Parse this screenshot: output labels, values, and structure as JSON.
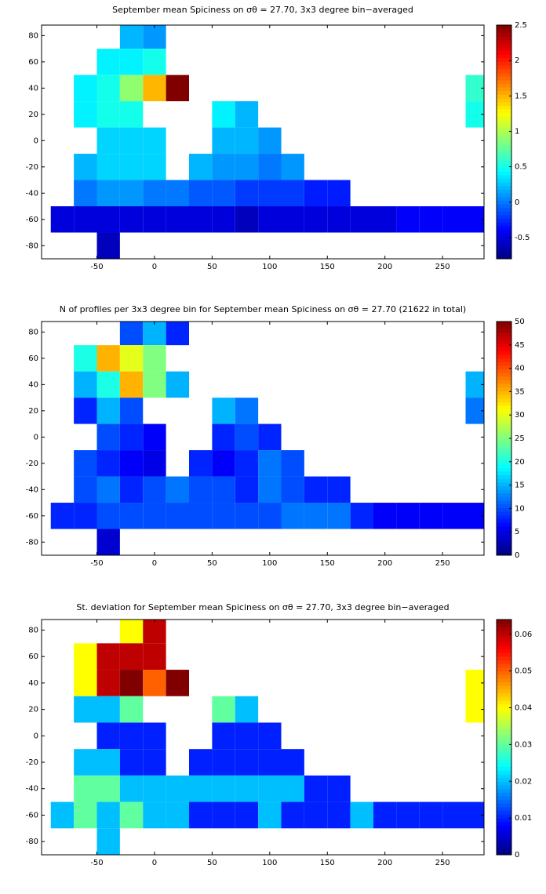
{
  "chart_data": [
    {
      "type": "heatmap",
      "title": "September mean Spiciness on σθ = 27.70, 3x3 degree bin−averaged",
      "colormap": "jet",
      "x_bins": [
        -90,
        -70,
        -50,
        -30,
        -10,
        10,
        30,
        50,
        70,
        90,
        110,
        130,
        150,
        170,
        190,
        210,
        230,
        250,
        270,
        290
      ],
      "y_bins": [
        90,
        70,
        50,
        30,
        10,
        -10,
        -30,
        -50,
        -70,
        -90
      ],
      "values": [
        [
          null,
          null,
          null,
          0.2,
          0.1,
          null,
          null,
          null,
          null,
          null,
          null,
          null,
          null,
          null,
          null,
          null,
          null,
          null,
          null
        ],
        [
          null,
          null,
          0.4,
          0.4,
          0.5,
          null,
          null,
          null,
          null,
          null,
          null,
          null,
          null,
          null,
          null,
          null,
          null,
          null,
          null
        ],
        [
          null,
          0.4,
          0.5,
          0.9,
          1.5,
          2.5,
          null,
          null,
          null,
          null,
          null,
          null,
          null,
          null,
          null,
          null,
          null,
          null,
          0.6
        ],
        [
          null,
          0.4,
          0.5,
          0.5,
          null,
          null,
          null,
          0.4,
          0.2,
          null,
          null,
          null,
          null,
          null,
          null,
          null,
          null,
          null,
          0.5
        ],
        [
          null,
          null,
          0.3,
          0.3,
          0.3,
          null,
          null,
          0.2,
          0.2,
          0.1,
          null,
          null,
          null,
          null,
          null,
          null,
          null,
          null,
          null
        ],
        [
          null,
          0.2,
          0.3,
          0.3,
          0.3,
          null,
          0.2,
          0.1,
          0.1,
          0,
          0.1,
          null,
          null,
          null,
          null,
          null,
          null,
          null,
          null
        ],
        [
          null,
          0,
          0.1,
          0.1,
          0,
          0,
          -0.1,
          -0.1,
          -0.2,
          -0.2,
          -0.2,
          -0.3,
          -0.3,
          null,
          null,
          null,
          null,
          null,
          null
        ],
        [
          -0.5,
          -0.5,
          -0.5,
          -0.5,
          -0.5,
          -0.5,
          -0.5,
          -0.5,
          -0.6,
          -0.5,
          -0.5,
          -0.5,
          -0.5,
          -0.5,
          -0.5,
          -0.4,
          -0.4,
          -0.4,
          -0.4
        ],
        [
          null,
          null,
          -0.6,
          null,
          null,
          null,
          null,
          null,
          null,
          null,
          null,
          null,
          null,
          null,
          null,
          null,
          null,
          null,
          null
        ]
      ],
      "xlim": [
        -98,
        286
      ],
      "ylim": [
        -90,
        88
      ],
      "xticks": [
        -50,
        0,
        50,
        100,
        150,
        200,
        250
      ],
      "yticks": [
        -80,
        -60,
        -40,
        -20,
        0,
        20,
        40,
        60,
        80
      ],
      "clim": [
        -0.8,
        2.5
      ],
      "cticks": [
        -0.5,
        0,
        0.5,
        1,
        1.5,
        2,
        2.5
      ]
    },
    {
      "type": "heatmap",
      "title": "N of profiles per 3x3 degree bin for September mean Spiciness on σθ = 27.70 (21622 in total)",
      "colormap": "jet",
      "x_bins": [
        -90,
        -70,
        -50,
        -30,
        -10,
        10,
        30,
        50,
        70,
        90,
        110,
        130,
        150,
        170,
        190,
        210,
        230,
        250,
        270,
        290
      ],
      "y_bins": [
        90,
        70,
        50,
        30,
        10,
        -10,
        -30,
        -50,
        -70,
        -90
      ],
      "values": [
        [
          null,
          null,
          null,
          10,
          15,
          8,
          null,
          null,
          null,
          null,
          null,
          null,
          null,
          null,
          null,
          null,
          null,
          null,
          null
        ],
        [
          null,
          20,
          35,
          30,
          25,
          null,
          null,
          null,
          null,
          null,
          null,
          null,
          null,
          null,
          null,
          null,
          null,
          null,
          null
        ],
        [
          null,
          15,
          20,
          35,
          25,
          15,
          null,
          null,
          null,
          null,
          null,
          null,
          null,
          null,
          null,
          null,
          null,
          null,
          15
        ],
        [
          null,
          8,
          15,
          10,
          null,
          null,
          null,
          15,
          12,
          null,
          null,
          null,
          null,
          null,
          null,
          null,
          null,
          null,
          12
        ],
        [
          null,
          null,
          10,
          8,
          6,
          null,
          null,
          8,
          10,
          8,
          null,
          null,
          null,
          null,
          null,
          null,
          null,
          null,
          null
        ],
        [
          null,
          10,
          8,
          6,
          5,
          null,
          8,
          6,
          8,
          12,
          10,
          null,
          null,
          null,
          null,
          null,
          null,
          null,
          null
        ],
        [
          null,
          10,
          12,
          8,
          10,
          12,
          10,
          10,
          8,
          12,
          10,
          8,
          8,
          null,
          null,
          null,
          null,
          null,
          null
        ],
        [
          8,
          8,
          10,
          10,
          10,
          10,
          10,
          10,
          10,
          10,
          12,
          12,
          12,
          8,
          6,
          6,
          6,
          6,
          6
        ],
        [
          null,
          null,
          4,
          null,
          null,
          null,
          null,
          null,
          null,
          null,
          null,
          null,
          null,
          null,
          null,
          null,
          null,
          null,
          null
        ]
      ],
      "xlim": [
        -98,
        286
      ],
      "ylim": [
        -90,
        88
      ],
      "xticks": [
        -50,
        0,
        50,
        100,
        150,
        200,
        250
      ],
      "yticks": [
        -80,
        -60,
        -40,
        -20,
        0,
        20,
        40,
        60,
        80
      ],
      "clim": [
        0,
        50
      ],
      "cticks": [
        0,
        5,
        10,
        15,
        20,
        25,
        30,
        35,
        40,
        45,
        50
      ]
    },
    {
      "type": "heatmap",
      "title": "St. deviation for September mean Spiciness on σθ = 27.70, 3x3 degree bin−averaged",
      "colormap": "jet",
      "x_bins": [
        -90,
        -70,
        -50,
        -30,
        -10,
        10,
        30,
        50,
        70,
        90,
        110,
        130,
        150,
        170,
        190,
        210,
        230,
        250,
        270,
        290
      ],
      "y_bins": [
        90,
        70,
        50,
        30,
        10,
        -10,
        -30,
        -50,
        -70,
        -90
      ],
      "values": [
        [
          null,
          null,
          null,
          0.04,
          0.06,
          null,
          null,
          null,
          null,
          null,
          null,
          null,
          null,
          null,
          null,
          null,
          null,
          null,
          null
        ],
        [
          null,
          0.04,
          0.06,
          0.06,
          0.06,
          null,
          null,
          null,
          null,
          null,
          null,
          null,
          null,
          null,
          null,
          null,
          null,
          null,
          null
        ],
        [
          null,
          0.04,
          0.06,
          0.064,
          0.05,
          0.064,
          null,
          null,
          null,
          null,
          null,
          null,
          null,
          null,
          null,
          null,
          null,
          null,
          0.04
        ],
        [
          null,
          0.02,
          0.02,
          0.03,
          null,
          null,
          null,
          0.03,
          0.02,
          null,
          null,
          null,
          null,
          null,
          null,
          null,
          null,
          null,
          0.04
        ],
        [
          null,
          null,
          0.01,
          0.01,
          0.01,
          null,
          null,
          0.01,
          0.01,
          0.01,
          null,
          null,
          null,
          null,
          null,
          null,
          null,
          null,
          null
        ],
        [
          null,
          0.02,
          0.02,
          0.01,
          0.01,
          null,
          0.01,
          0.01,
          0.01,
          0.01,
          0.01,
          null,
          null,
          null,
          null,
          null,
          null,
          null,
          null
        ],
        [
          null,
          0.03,
          0.03,
          0.02,
          0.02,
          0.02,
          0.02,
          0.02,
          0.02,
          0.02,
          0.02,
          0.01,
          0.01,
          null,
          null,
          null,
          null,
          null,
          null
        ],
        [
          0.02,
          0.03,
          0.02,
          0.03,
          0.02,
          0.02,
          0.01,
          0.01,
          0.01,
          0.02,
          0.01,
          0.01,
          0.01,
          0.02,
          0.01,
          0.01,
          0.01,
          0.01,
          0.01
        ],
        [
          null,
          null,
          0.02,
          null,
          null,
          null,
          null,
          null,
          null,
          null,
          null,
          null,
          null,
          null,
          null,
          null,
          null,
          null,
          null
        ]
      ],
      "xlim": [
        -98,
        286
      ],
      "ylim": [
        -90,
        88
      ],
      "xticks": [
        -50,
        0,
        50,
        100,
        150,
        200,
        250
      ],
      "yticks": [
        -80,
        -60,
        -40,
        -20,
        0,
        20,
        40,
        60,
        80
      ],
      "clim": [
        0,
        0.064
      ],
      "cticks": [
        0,
        0.01,
        0.02,
        0.03,
        0.04,
        0.05,
        0.06
      ]
    }
  ]
}
